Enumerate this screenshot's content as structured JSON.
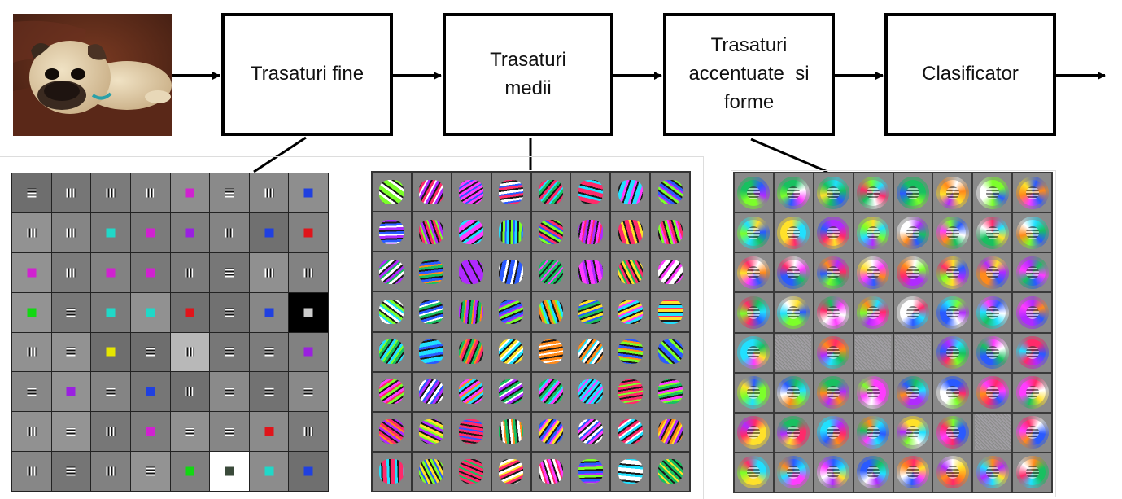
{
  "input_image": {
    "description": "dog-photo"
  },
  "stages": [
    {
      "label": "Trasaturi fine"
    },
    {
      "label": "Trasaturi\nmedii"
    },
    {
      "label": "Trasaturi\naccentuate  si\nforme"
    },
    {
      "label": "Clasificator"
    }
  ],
  "colors": {
    "box_border": "#000000",
    "arrow": "#000000",
    "panel_cell_gray": "#838383",
    "fine_filter_palette": [
      "#e6e600",
      "#e0141a",
      "#d022d0",
      "#2040e0",
      "#12d812",
      "#20d8c8",
      "#9a20e0",
      "#ffffff",
      "#000000"
    ]
  },
  "panels": {
    "fine": {
      "rows": 8,
      "cols": 8
    },
    "medium": {
      "rows": 8,
      "cols": 8
    },
    "coarse": {
      "rows": 8,
      "cols": 8
    }
  }
}
